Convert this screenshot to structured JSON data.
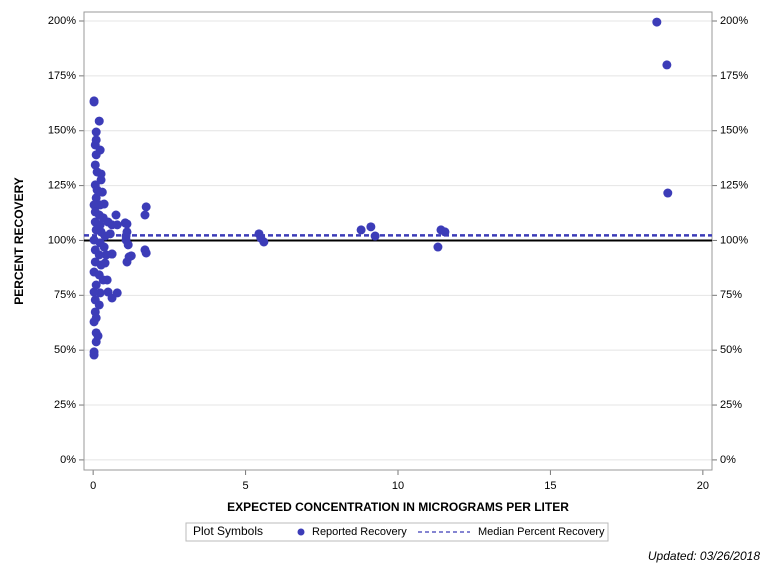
{
  "chart_data": {
    "type": "scatter",
    "x_label": "EXPECTED CONCENTRATION IN MICROGRAMS PER LITER",
    "y_label": "PERCENT RECOVERY",
    "xlim": [
      -0.3,
      20.3
    ],
    "ylim": [
      -4.6,
      204.1
    ],
    "xticks": [
      0,
      5,
      10,
      15,
      20
    ],
    "yticks": [
      {
        "value": 0,
        "label": "0%"
      },
      {
        "value": 25,
        "label": "25%"
      },
      {
        "value": 50,
        "label": "50%"
      },
      {
        "value": 75,
        "label": "75%"
      },
      {
        "value": 100,
        "label": "100%"
      },
      {
        "value": 125,
        "label": "125%"
      },
      {
        "value": 150,
        "label": "150%"
      },
      {
        "value": 175,
        "label": "175%"
      },
      {
        "value": 200,
        "label": "200%"
      }
    ],
    "grid": true,
    "legend_title": "Plot Symbols",
    "series": [
      {
        "name": "Reported Recovery",
        "color": "#3c3cb8",
        "x": [
          0.03,
          0.03,
          0.1,
          0.2,
          0.1,
          0.23,
          0.07,
          0.1,
          0.07,
          0.13,
          0.26,
          0.26,
          0.07,
          0.13,
          0.3,
          0.1,
          0.03,
          0.23,
          0.36,
          0.07,
          0.2,
          0.33,
          0.07,
          0.23,
          0.49,
          0.62,
          0.1,
          0.26,
          0.39,
          0.56,
          0.03,
          0.23,
          0.36,
          0.07,
          0.2,
          0.43,
          0.62,
          0.07,
          0.26,
          0.39,
          0.03,
          0.2,
          0.33,
          0.46,
          0.1,
          0.03,
          0.23,
          0.07,
          0.2,
          0.07,
          0.1,
          0.03,
          0.1,
          0.16,
          0.1,
          0.03,
          0.03,
          0.49,
          0.62,
          0.79,
          0.75,
          0.79,
          0.62,
          1.05,
          1.11,
          1.11,
          1.08,
          1.11,
          1.18,
          1.15,
          1.25,
          1.08,
          1.74,
          1.7,
          1.7,
          1.74,
          5.44,
          5.5,
          5.6,
          8.79,
          9.11,
          9.25,
          11.31,
          11.41,
          11.54,
          18.49,
          18.82,
          18.85
        ],
        "values": [
          163.1,
          163.6,
          149.4,
          154.4,
          145.8,
          141.2,
          143.5,
          139,
          134.4,
          131.2,
          130.3,
          127.6,
          125.3,
          123,
          122,
          119.4,
          116.2,
          116.2,
          116.6,
          113,
          111.6,
          110.3,
          108.4,
          107.1,
          108.4,
          107.1,
          104.8,
          103.9,
          102,
          103,
          100.2,
          98.9,
          97,
          95.7,
          93.4,
          93.4,
          93.8,
          90.2,
          88.8,
          89.7,
          85.6,
          84.3,
          82,
          82,
          79.7,
          76.5,
          76.1,
          72.9,
          70.6,
          67.4,
          64.7,
          62.9,
          57.9,
          56.5,
          53.8,
          49.2,
          47.8,
          76.5,
          73.8,
          76.1,
          111.6,
          107.1,
          93.8,
          108,
          107.5,
          103.9,
          102,
          90.2,
          92.5,
          98,
          93,
          100.2,
          115.3,
          111.6,
          95.7,
          94.3,
          103,
          101.1,
          99.3,
          104.8,
          106.2,
          102,
          97,
          104.8,
          103.9,
          199.5,
          180,
          121.6
        ]
      }
    ],
    "median_line": {
      "name": "Median Percent Recovery",
      "value": 102.3,
      "color": "#3c3cb8"
    },
    "reference_line": 100,
    "updated": "Updated: 03/26/2018"
  }
}
